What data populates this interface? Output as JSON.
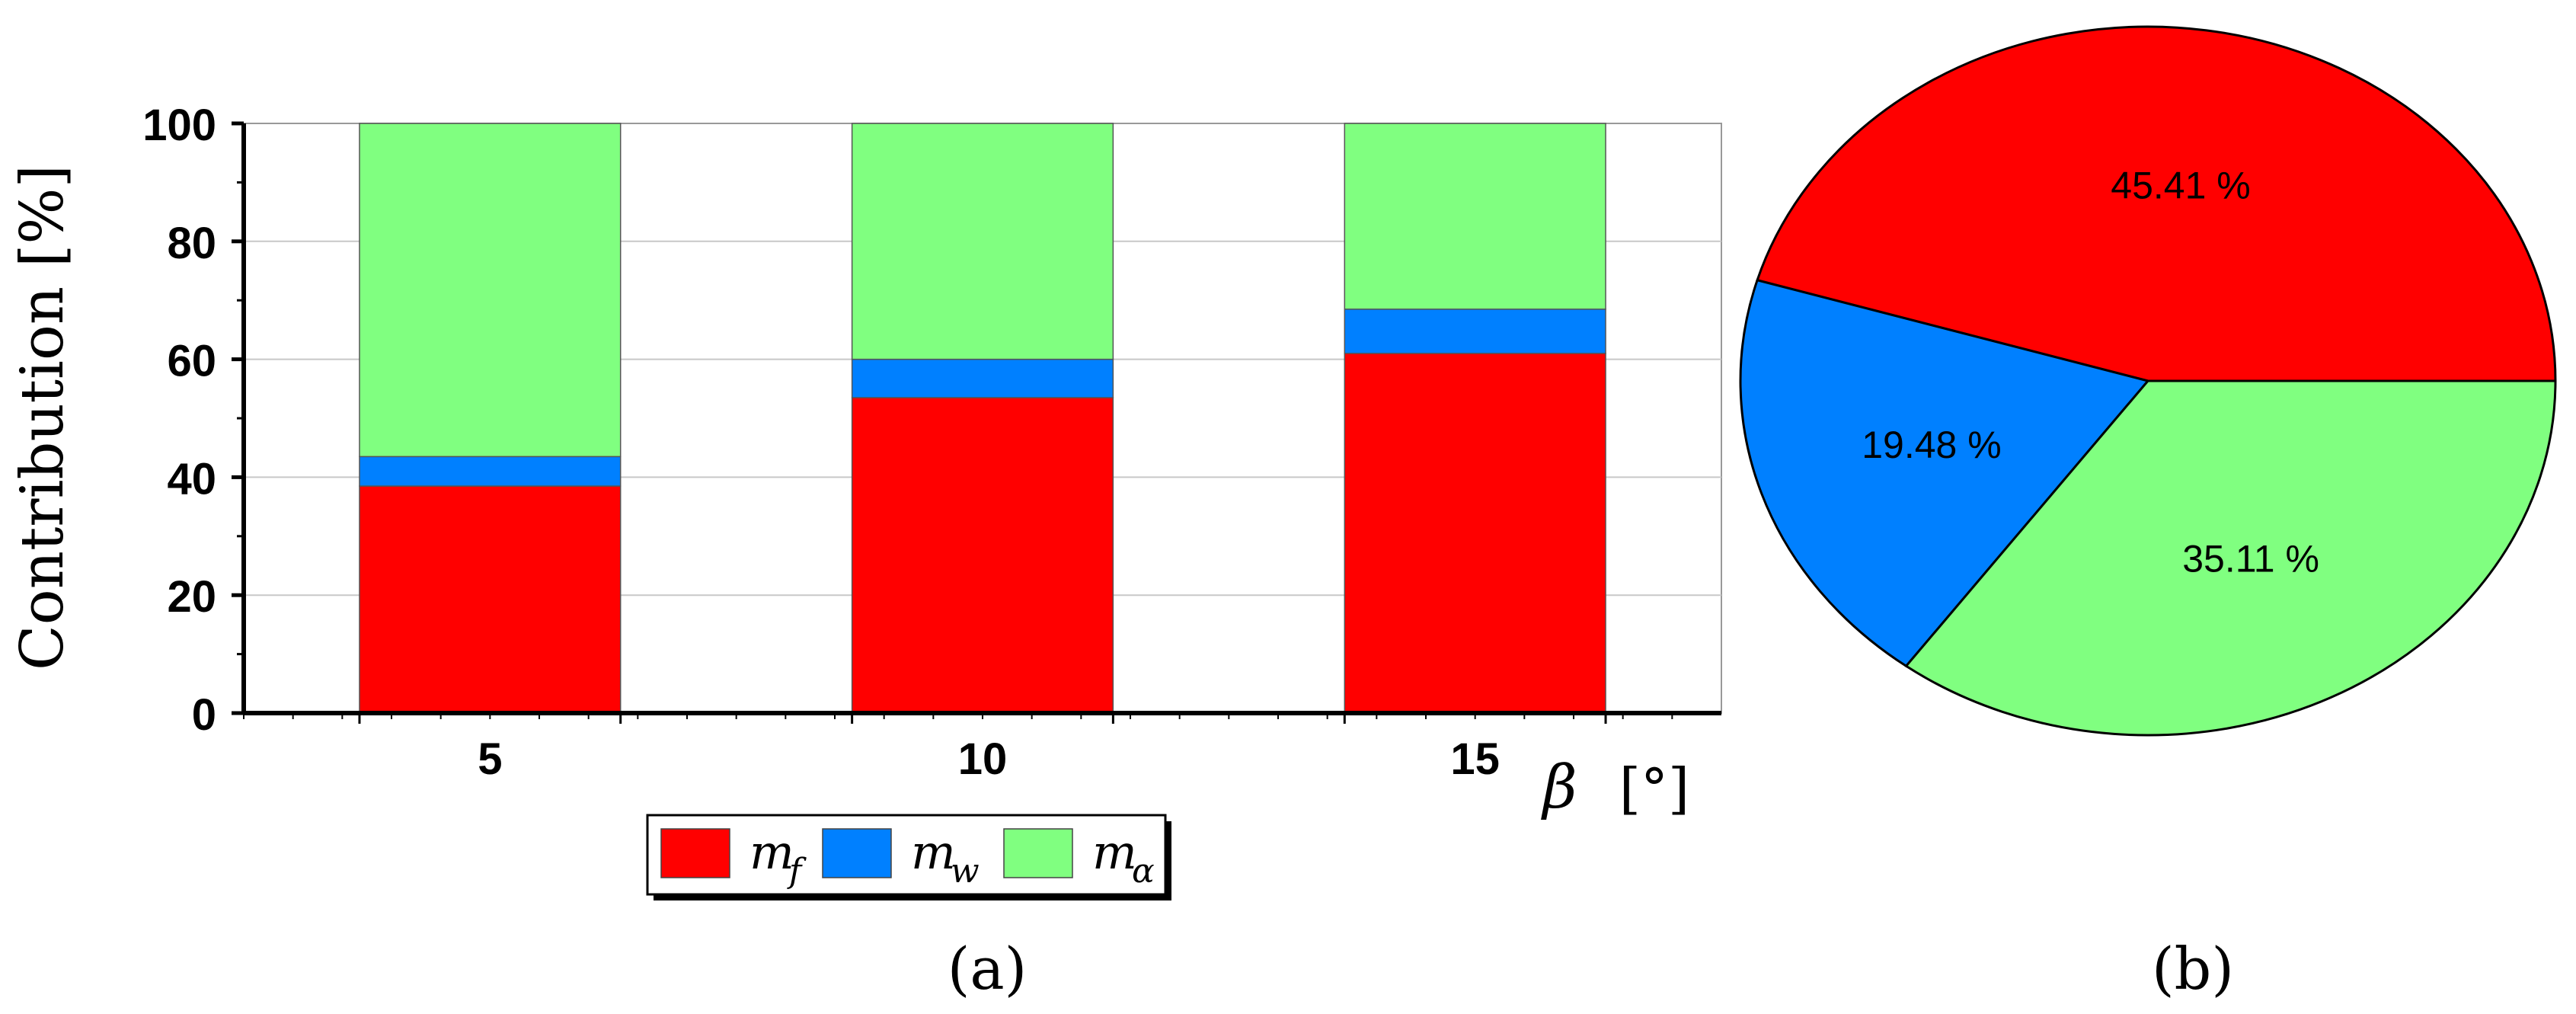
{
  "chart_data": [
    {
      "type": "bar",
      "stacked": true,
      "panel_label": "(a)",
      "categories": [
        "5",
        "10",
        "15"
      ],
      "series": [
        {
          "name": "m_f",
          "values": [
            38.5,
            53.5,
            61
          ],
          "color": "#ff0000"
        },
        {
          "name": "m_w",
          "values": [
            5,
            6.5,
            7.5
          ],
          "color": "#0080ff"
        },
        {
          "name": "m_α",
          "values": [
            56.5,
            40,
            31.5
          ],
          "color": "#80ff80"
        }
      ],
      "ylabel": "Contribution [%]",
      "xlabel_symbol": "β",
      "xlabel_unit": "[°]",
      "ylim": [
        0,
        100
      ],
      "yticks": [
        "0",
        "20",
        "40",
        "60",
        "80",
        "100"
      ],
      "grid": "horizontal",
      "legend": {
        "placement": "bottom-center",
        "items": [
          {
            "main": "m",
            "sub": "f",
            "color": "#ff0000"
          },
          {
            "main": "m",
            "sub": "w",
            "color": "#0080ff"
          },
          {
            "main": "m",
            "sub": "α",
            "color": "#80ff80"
          }
        ]
      }
    },
    {
      "type": "pie",
      "panel_label": "(b)",
      "slices": [
        {
          "label": "45.41 %",
          "value": 45.41,
          "color": "#ff0000"
        },
        {
          "label": "19.48 %",
          "value": 19.48,
          "color": "#0080ff"
        },
        {
          "label": "35.11 %",
          "value": 35.11,
          "color": "#80ff80"
        }
      ]
    }
  ]
}
